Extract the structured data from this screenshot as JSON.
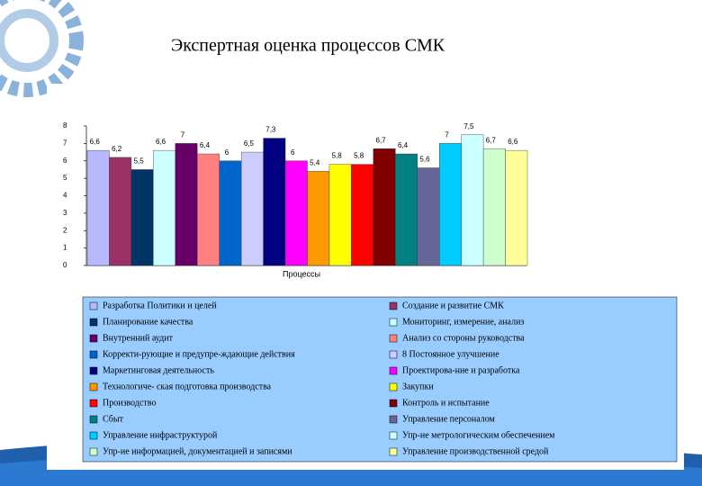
{
  "chart_data": {
    "type": "bar",
    "title": "Экспертная оценка процессов СМК",
    "x_label": "Процессы",
    "categories": [
      "Разработка Политики и целей",
      "Создание и развитие СМК",
      "Планирование качества",
      "Мониторинг, измерение, анализ",
      "Внутренний аудит",
      "Анализ со стороны руководства",
      "Корректи-рующие и предупре-ждающие действия",
      "8 Постоянное улучшение",
      "Маркетинговая деятельность",
      "Проектирова-ние и разработка",
      "Технологиче- ская подготовка производства",
      "Закупки",
      "Производство",
      "Контроль и испытание",
      "Сбыт",
      "Управление персоналом",
      "Управление инфраструктурой",
      "Упр-ие метрологическим обеспечением",
      "Упр-ие информацией, документацией и записями",
      "Управление производственной средой"
    ],
    "values": [
      6.6,
      6.2,
      5.5,
      6.6,
      7,
      6.4,
      6,
      6.5,
      7.3,
      6,
      5.4,
      5.8,
      5.8,
      6.7,
      6.4,
      5.6,
      7,
      7.5,
      6.7,
      6.6
    ],
    "value_labels": [
      "6,6",
      "6,2",
      "5,5",
      "6,6",
      "7",
      "6,4",
      "6",
      "6,5",
      "7,3",
      "6",
      "5,4",
      "5,8",
      "5,8",
      "6,7",
      "6,4",
      "5,6",
      "7",
      "7,5",
      "6,7",
      "6,6"
    ],
    "colors": [
      "#b8b8ff",
      "#993366",
      "#003366",
      "#ccffff",
      "#660066",
      "#ff8080",
      "#0066cc",
      "#ccccff",
      "#000080",
      "#ff00ff",
      "#ff9900",
      "#ffff00",
      "#ff0000",
      "#800000",
      "#008080",
      "#666699",
      "#00ccff",
      "#ccffff",
      "#ccffcc",
      "#ffff99"
    ],
    "ylim": [
      0,
      8
    ],
    "yticks": [
      0,
      1,
      2,
      3,
      4,
      5,
      6,
      7,
      8
    ],
    "grid": false
  }
}
